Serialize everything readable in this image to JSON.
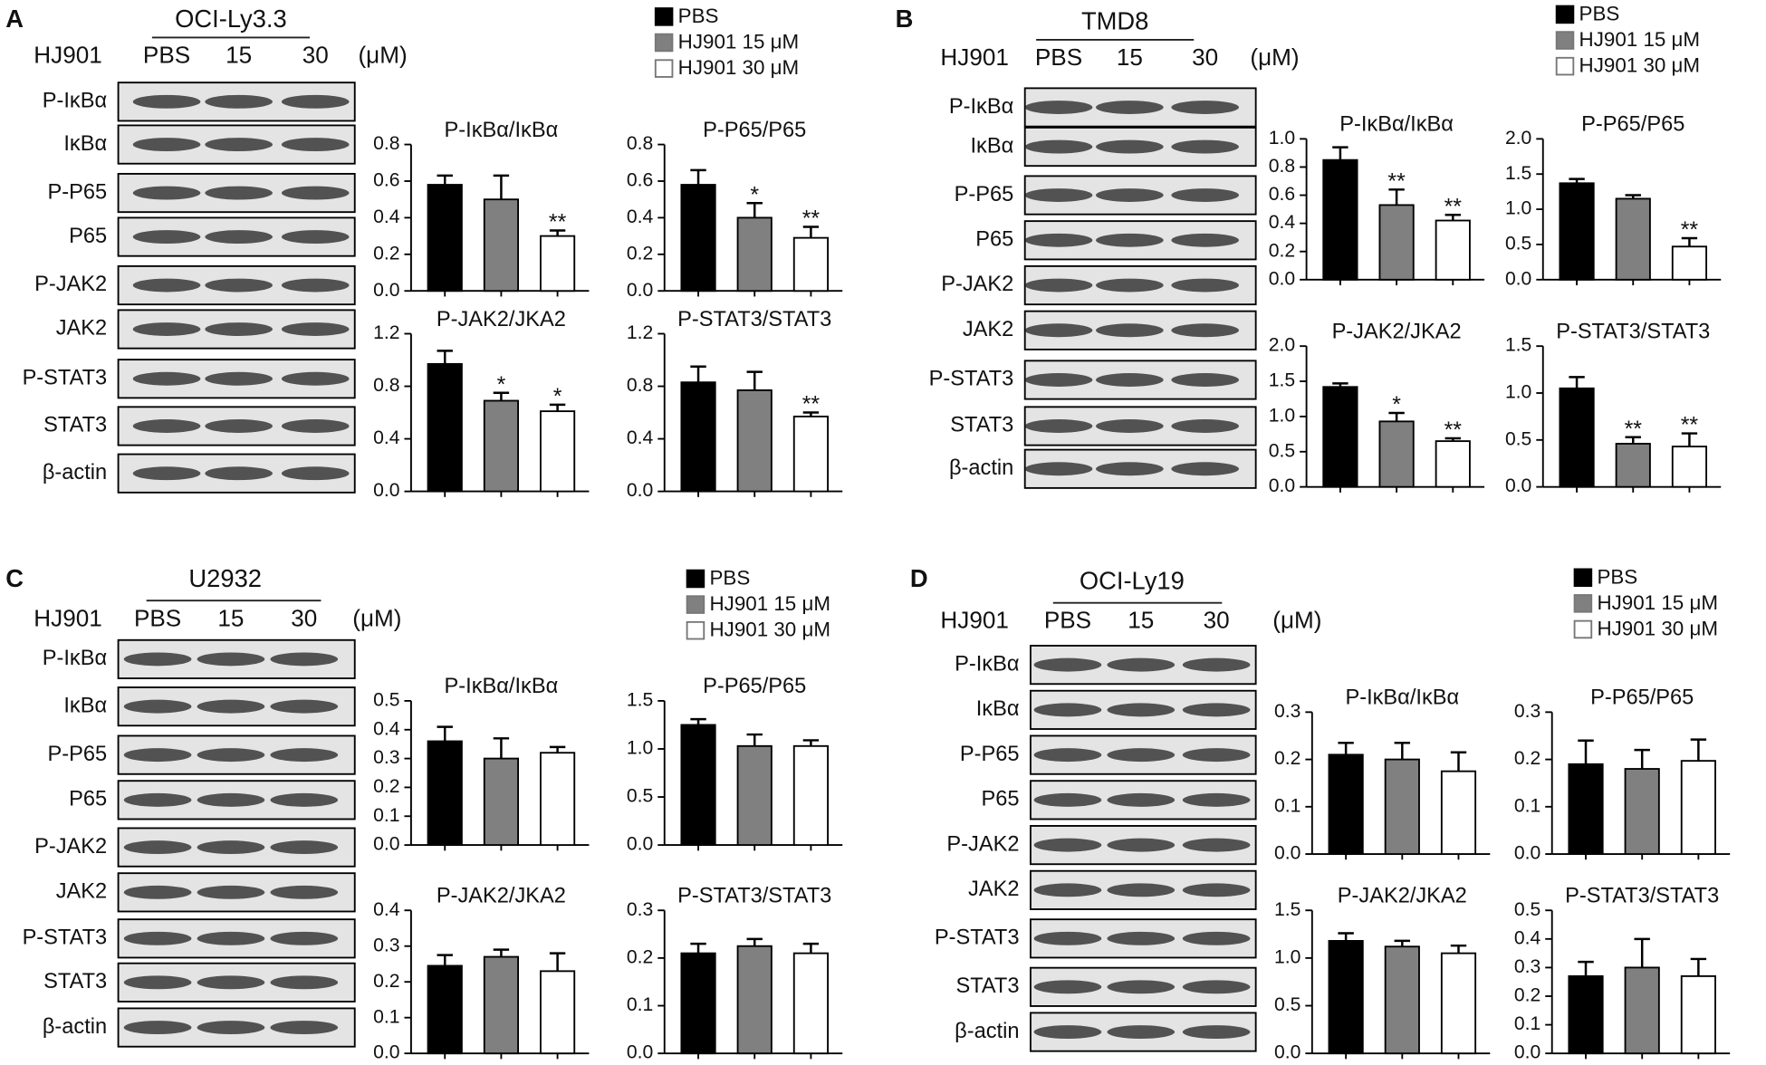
{
  "panels": [
    {
      "letter": "A",
      "cell_line": "OCI-Ly3.3",
      "treatment": "HJ901",
      "lanes": [
        "PBS",
        "15",
        "30"
      ],
      "unit": "(μM)",
      "blots": [
        "P-IκBα",
        "IκBα",
        "P-P65",
        "P65",
        "P-JAK2",
        "JAK2",
        "P-STAT3",
        "STAT3",
        "β-actin"
      ],
      "legend": [
        {
          "name": "PBS",
          "color": "#000000"
        },
        {
          "name": "HJ901 15 μM",
          "color": "#808080"
        },
        {
          "name": "HJ901 30 μM",
          "color": "#ffffff"
        }
      ]
    },
    {
      "letter": "B",
      "cell_line": "TMD8",
      "treatment": "HJ901",
      "lanes": [
        "PBS",
        "15",
        "30"
      ],
      "unit": "(μM)",
      "blots": [
        "P-IκBα",
        "IκBα",
        "P-P65",
        "P65",
        "P-JAK2",
        "JAK2",
        "P-STAT3",
        "STAT3",
        "β-actin"
      ],
      "legend": [
        {
          "name": "PBS",
          "color": "#000000"
        },
        {
          "name": "HJ901 15 μM",
          "color": "#808080"
        },
        {
          "name": "HJ901 30 μM",
          "color": "#ffffff"
        }
      ]
    },
    {
      "letter": "C",
      "cell_line": "U2932",
      "treatment": "HJ901",
      "lanes": [
        "PBS",
        "15",
        "30"
      ],
      "unit": "(μM)",
      "blots": [
        "P-IκBα",
        "IκBα",
        "P-P65",
        "P65",
        "P-JAK2",
        "JAK2",
        "P-STAT3",
        "STAT3",
        "β-actin"
      ],
      "legend": [
        {
          "name": "PBS",
          "color": "#000000"
        },
        {
          "name": "HJ901 15 μM",
          "color": "#808080"
        },
        {
          "name": "HJ901 30 μM",
          "color": "#ffffff"
        }
      ]
    },
    {
      "letter": "D",
      "cell_line": "OCI-Ly19",
      "treatment": "HJ901",
      "lanes": [
        "PBS",
        "15",
        "30"
      ],
      "unit": "(μM)",
      "blots": [
        "P-IκBα",
        "IκBα",
        "P-P65",
        "P65",
        "P-JAK2",
        "JAK2",
        "P-STAT3",
        "STAT3",
        "β-actin"
      ],
      "legend": [
        {
          "name": "PBS",
          "color": "#000000"
        },
        {
          "name": "HJ901 15 μM",
          "color": "#808080"
        },
        {
          "name": "HJ901 30 μM",
          "color": "#ffffff"
        }
      ]
    }
  ],
  "chart_data": [
    {
      "type": "bar",
      "title": "P-IκBα/IκBα",
      "values": [
        0.58,
        0.5,
        0.3
      ],
      "errors": [
        0.05,
        0.13,
        0.03
      ],
      "significance": [
        null,
        null,
        "**"
      ],
      "ylim": [
        0,
        0.8
      ],
      "yticks": [
        {
          "value": 0,
          "label": "0.0"
        },
        0.2,
        0.4,
        0.6,
        0.8
      ]
    },
    {
      "type": "bar",
      "title": "P-P65/P65",
      "values": [
        0.58,
        0.4,
        0.29
      ],
      "errors": [
        0.08,
        0.08,
        0.06
      ],
      "significance": [
        null,
        "*",
        "**"
      ],
      "ylim": [
        0,
        0.8
      ],
      "yticks": [
        {
          "value": 0,
          "label": "0.0"
        },
        0.2,
        0.4,
        0.6,
        0.8
      ]
    },
    {
      "type": "bar",
      "title": "P-JAK2/JKA2",
      "values": [
        0.97,
        0.69,
        0.61
      ],
      "errors": [
        0.1,
        0.06,
        0.05
      ],
      "significance": [
        null,
        "*",
        "*"
      ],
      "ylim": [
        0,
        1.2
      ],
      "yticks": [
        {
          "value": 0,
          "label": "0.0"
        },
        0.4,
        0.8,
        1.2
      ]
    },
    {
      "type": "bar",
      "title": "P-STAT3/STAT3",
      "values": [
        0.83,
        0.77,
        0.57
      ],
      "errors": [
        0.12,
        0.14,
        0.03
      ],
      "significance": [
        null,
        null,
        "**"
      ],
      "ylim": [
        0,
        1.2
      ],
      "yticks": [
        {
          "value": 0,
          "label": "0.0"
        },
        0.4,
        0.8,
        1.2
      ]
    },
    {
      "type": "bar",
      "title": "P-IκBα/IκBα",
      "values": [
        0.85,
        0.53,
        0.42
      ],
      "errors": [
        0.09,
        0.11,
        0.04
      ],
      "significance": [
        null,
        "**",
        "**"
      ],
      "ylim": [
        0,
        1
      ],
      "yticks": [
        {
          "value": 0,
          "label": "0.0"
        },
        0.2,
        0.4,
        0.6,
        0.8,
        {
          "value": 1,
          "label": "1.0"
        }
      ]
    },
    {
      "type": "bar",
      "title": "P-P65/P65",
      "values": [
        1.37,
        1.15,
        0.47
      ],
      "errors": [
        0.06,
        0.05,
        0.12
      ],
      "significance": [
        null,
        null,
        "**"
      ],
      "ylim": [
        0,
        2
      ],
      "yticks": [
        {
          "value": 0,
          "label": "0.0"
        },
        0.5,
        {
          "value": 1,
          "label": "1.0"
        },
        1.5,
        {
          "value": 2,
          "label": "2.0"
        }
      ]
    },
    {
      "type": "bar",
      "title": "P-JAK2/JKA2",
      "values": [
        1.42,
        0.93,
        0.65
      ],
      "errors": [
        0.05,
        0.12,
        0.04
      ],
      "significance": [
        null,
        "*",
        "**"
      ],
      "ylim": [
        0,
        2
      ],
      "yticks": [
        {
          "value": 0,
          "label": "0.0"
        },
        0.5,
        {
          "value": 1,
          "label": "1.0"
        },
        1.5,
        {
          "value": 2,
          "label": "2.0"
        }
      ]
    },
    {
      "type": "bar",
      "title": "P-STAT3/STAT3",
      "values": [
        1.05,
        0.46,
        0.43
      ],
      "errors": [
        0.12,
        0.07,
        0.14
      ],
      "significance": [
        null,
        "**",
        "**"
      ],
      "ylim": [
        0,
        1.5
      ],
      "yticks": [
        {
          "value": 0,
          "label": "0.0"
        },
        0.5,
        {
          "value": 1,
          "label": "1.0"
        },
        1.5
      ]
    },
    {
      "type": "bar",
      "title": "P-IκBα/IκBα",
      "values": [
        0.36,
        0.3,
        0.32
      ],
      "errors": [
        0.05,
        0.07,
        0.02
      ],
      "significance": [
        null,
        null,
        null
      ],
      "ylim": [
        0,
        0.5
      ],
      "yticks": [
        {
          "value": 0,
          "label": "0.0"
        },
        0.1,
        0.2,
        0.3,
        0.4,
        0.5
      ]
    },
    {
      "type": "bar",
      "title": "P-P65/P65",
      "values": [
        1.25,
        1.03,
        1.03
      ],
      "errors": [
        0.06,
        0.12,
        0.06
      ],
      "significance": [
        null,
        null,
        null
      ],
      "ylim": [
        0,
        1.5
      ],
      "yticks": [
        {
          "value": 0,
          "label": "0.0"
        },
        0.5,
        {
          "value": 1,
          "label": "1.0"
        },
        1.5
      ]
    },
    {
      "type": "bar",
      "title": "P-JAK2/JKA2",
      "values": [
        0.245,
        0.27,
        0.23
      ],
      "errors": [
        0.03,
        0.02,
        0.05
      ],
      "significance": [
        null,
        null,
        null
      ],
      "ylim": [
        0,
        0.4
      ],
      "yticks": [
        {
          "value": 0,
          "label": "0.0"
        },
        0.1,
        0.2,
        0.3,
        0.4
      ]
    },
    {
      "type": "bar",
      "title": "P-STAT3/STAT3",
      "values": [
        0.21,
        0.225,
        0.21
      ],
      "errors": [
        0.02,
        0.015,
        0.02
      ],
      "significance": [
        null,
        null,
        null
      ],
      "ylim": [
        0,
        0.3
      ],
      "yticks": [
        {
          "value": 0,
          "label": "0.0"
        },
        0.1,
        0.2,
        0.3
      ]
    },
    {
      "type": "bar",
      "title": "P-IκBα/IκBα",
      "values": [
        0.21,
        0.2,
        0.175
      ],
      "errors": [
        0.025,
        0.035,
        0.04
      ],
      "significance": [
        null,
        null,
        null
      ],
      "ylim": [
        0,
        0.3
      ],
      "yticks": [
        {
          "value": 0,
          "label": "0.0"
        },
        0.1,
        0.2,
        0.3
      ]
    },
    {
      "type": "bar",
      "title": "P-P65/P65",
      "values": [
        0.19,
        0.18,
        0.197
      ],
      "errors": [
        0.05,
        0.04,
        0.045
      ],
      "significance": [
        null,
        null,
        null
      ],
      "ylim": [
        0,
        0.3
      ],
      "yticks": [
        {
          "value": 0,
          "label": "0.0"
        },
        0.1,
        0.2,
        0.3
      ]
    },
    {
      "type": "bar",
      "title": "P-JAK2/JKA2",
      "values": [
        1.18,
        1.12,
        1.05
      ],
      "errors": [
        0.08,
        0.06,
        0.08
      ],
      "significance": [
        null,
        null,
        null
      ],
      "ylim": [
        0,
        1.5
      ],
      "yticks": [
        {
          "value": 0,
          "label": "0.0"
        },
        0.5,
        {
          "value": 1,
          "label": "1.0"
        },
        1.5
      ]
    },
    {
      "type": "bar",
      "title": "P-STAT3/STAT3",
      "values": [
        0.27,
        0.3,
        0.27
      ],
      "errors": [
        0.05,
        0.1,
        0.06
      ],
      "significance": [
        null,
        null,
        null
      ],
      "ylim": [
        0,
        0.5
      ],
      "yticks": [
        {
          "value": 0,
          "label": "0.0"
        },
        0.1,
        0.2,
        0.3,
        0.4,
        0.5
      ]
    }
  ]
}
